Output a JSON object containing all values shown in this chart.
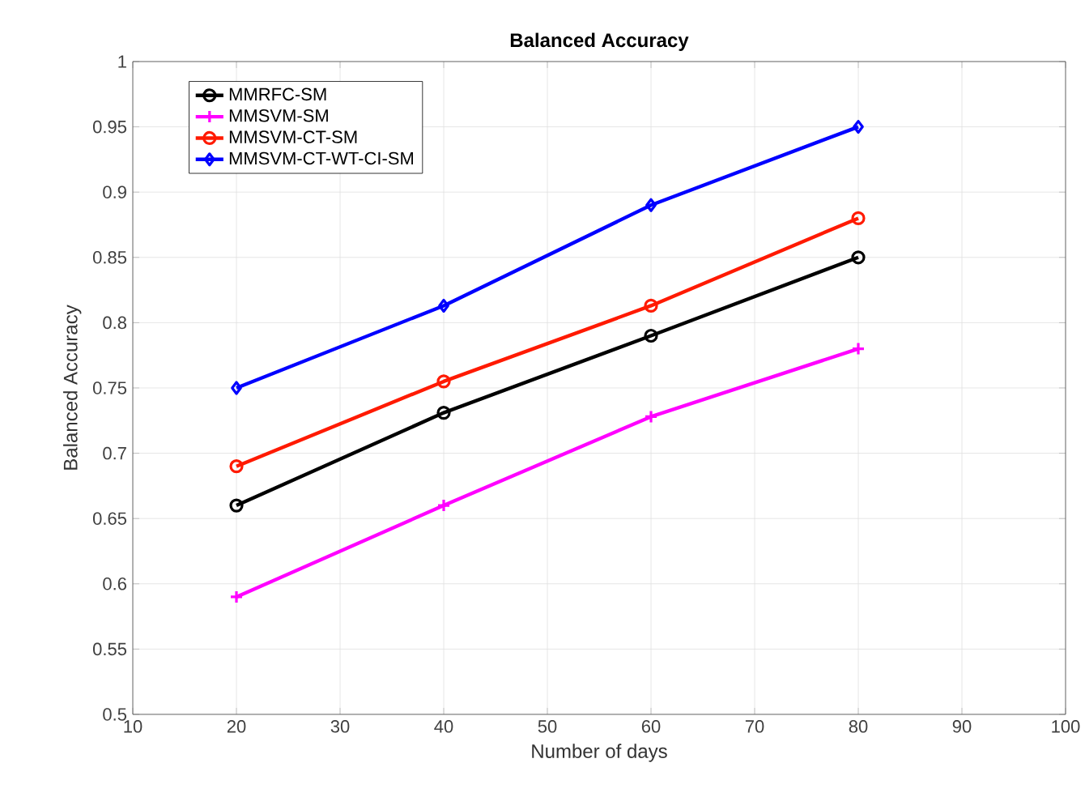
{
  "chart_data": {
    "type": "line",
    "title": "Balanced Accuracy",
    "xlabel": "Number of days",
    "ylabel": "Balanced Accuracy",
    "x": [
      20,
      40,
      60,
      80
    ],
    "series": [
      {
        "name": "MMRFC-SM",
        "color": "#000000",
        "marker": "circle",
        "values": [
          0.66,
          0.731,
          0.79,
          0.85
        ]
      },
      {
        "name": "MMSVM-SM",
        "color": "#ff00ff",
        "marker": "cross",
        "values": [
          0.59,
          0.66,
          0.728,
          0.78
        ]
      },
      {
        "name": "MMSVM-CT-SM",
        "color": "#ff1a00",
        "marker": "circle",
        "values": [
          0.69,
          0.755,
          0.813,
          0.88
        ]
      },
      {
        "name": "MMSVM-CT-WT-CI-SM",
        "color": "#0000ff",
        "marker": "diamond",
        "values": [
          0.75,
          0.813,
          0.89,
          0.95
        ]
      }
    ],
    "xlim": [
      10,
      100
    ],
    "xticks": [
      10,
      20,
      30,
      40,
      50,
      60,
      70,
      80,
      90,
      100
    ],
    "ylim": [
      0.5,
      1
    ],
    "yticks": [
      0.5,
      0.55,
      0.6,
      0.65,
      0.7,
      0.75,
      0.8,
      0.85,
      0.9,
      0.95,
      1
    ],
    "grid": true,
    "legend": "top left",
    "line_style": "solid"
  }
}
